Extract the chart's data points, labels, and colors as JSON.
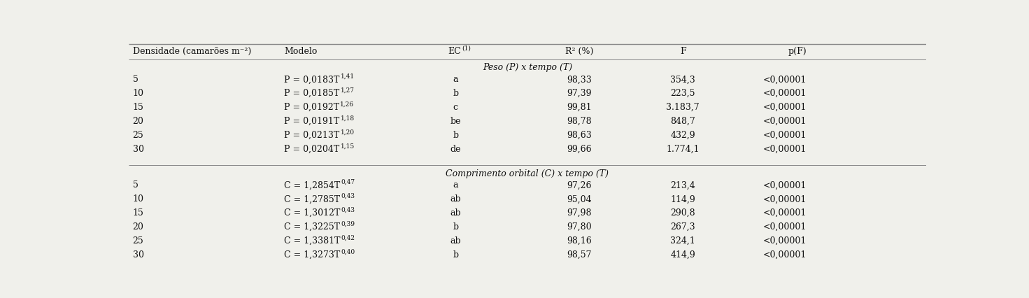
{
  "section1_title": "Peso (P) x tempo (T)",
  "section2_title": "Comprimento orbital (C) x tempo (T)",
  "peso_rows": [
    [
      "5",
      "P = 0,0183T",
      "1,41",
      "a",
      "98,33",
      "354,3",
      "<0,00001"
    ],
    [
      "10",
      "P = 0,0185T",
      "1,27",
      "b",
      "97,39",
      "223,5",
      "<0,00001"
    ],
    [
      "15",
      "P = 0,0192T",
      "1,26",
      "c",
      "99,81",
      "3.183,7",
      "<0,00001"
    ],
    [
      "20",
      "P = 0,0191T",
      "1,18",
      "be",
      "98,78",
      "848,7",
      "<0,00001"
    ],
    [
      "25",
      "P = 0,0213T",
      "1,20",
      "b",
      "98,63",
      "432,9",
      "<0,00001"
    ],
    [
      "30",
      "P = 0,0204T",
      "1,15",
      "de",
      "99,66",
      "1.774,1",
      "<0,00001"
    ]
  ],
  "comp_rows": [
    [
      "5",
      "C = 1,2854T",
      "0,47",
      "a",
      "97,26",
      "213,4",
      "<0,00001"
    ],
    [
      "10",
      "C = 1,2785T",
      "0,43",
      "ab",
      "95,04",
      "114,9",
      "<0,00001"
    ],
    [
      "15",
      "C = 1,3012T",
      "0,43",
      "ab",
      "97,98",
      "290,8",
      "<0,00001"
    ],
    [
      "20",
      "C = 1,3225T",
      "0,39",
      "b",
      "97,80",
      "267,3",
      "<0,00001"
    ],
    [
      "25",
      "C = 1,3381T",
      "0,42",
      "ab",
      "98,16",
      "324,1",
      "<0,00001"
    ],
    [
      "30",
      "C = 1,3273T",
      "0,40",
      "b",
      "98,57",
      "414,9",
      "<0,00001"
    ]
  ],
  "background_color": "#f0f0eb",
  "font_size": 9.0,
  "line_color": "#888888"
}
